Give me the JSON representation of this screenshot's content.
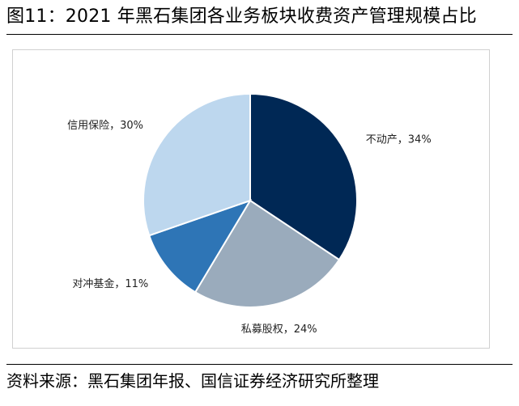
{
  "figure": {
    "title": "图11：2021 年黑石集团各业务板块收费资产管理规模占比",
    "source": "资料来源：黑石集团年报、国信证券经济研究所整理"
  },
  "chart_data": {
    "type": "pie",
    "title": "",
    "start_angle_deg": 0,
    "direction": "clockwise",
    "slices": [
      {
        "label": "不动产，34%",
        "value": 34,
        "color": "#002855"
      },
      {
        "label": "私募股权，24%",
        "value": 24,
        "color": "#9aabbc"
      },
      {
        "label": "对冲基金，11%",
        "value": 11,
        "color": "#2e75b6"
      },
      {
        "label": "信用保险，30%",
        "value": 30,
        "color": "#bdd7ee"
      }
    ]
  }
}
